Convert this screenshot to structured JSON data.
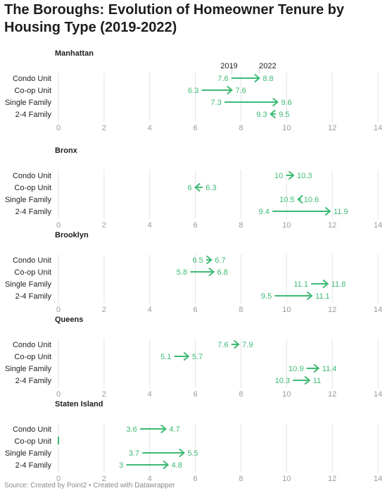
{
  "title": "The Boroughs: Evolution of Homeowner Tenure by Housing Type (2019-2022)",
  "source": "Source: Created by Point2 • Created with Datawrapper",
  "colors": {
    "accent": "#3dba73",
    "grid": "#e4e4e4",
    "tick": "#9a9a9a"
  },
  "chart_data": [
    {
      "type": "arrow",
      "title": "Manhattan",
      "legend": {
        "start_label": "2019",
        "end_label": "2022"
      },
      "xlim": [
        0,
        14
      ],
      "ticks": [
        0,
        2,
        4,
        6,
        8,
        10,
        12,
        14
      ],
      "categories": [
        "Condo Unit",
        "Co-op Unit",
        "Single Family",
        "2-4 Family"
      ],
      "start": [
        7.6,
        6.3,
        7.3,
        9.5
      ],
      "end": [
        8.8,
        7.6,
        9.6,
        9.3
      ]
    },
    {
      "type": "arrow",
      "title": "Bronx",
      "xlim": [
        0,
        14
      ],
      "ticks": [
        0,
        2,
        4,
        6,
        8,
        10,
        12,
        14
      ],
      "categories": [
        "Condo Unit",
        "Co-op Unit",
        "Single Family",
        "2-4 Family"
      ],
      "start": [
        10,
        6.3,
        10.6,
        9.4
      ],
      "end": [
        10.3,
        6,
        10.5,
        11.9
      ]
    },
    {
      "type": "arrow",
      "title": "Brooklyn",
      "xlim": [
        0,
        14
      ],
      "ticks": [
        0,
        2,
        4,
        6,
        8,
        10,
        12,
        14
      ],
      "categories": [
        "Condo Unit",
        "Co-op Unit",
        "Single Family",
        "2-4 Family"
      ],
      "start": [
        6.5,
        5.8,
        11.1,
        9.5
      ],
      "end": [
        6.7,
        6.8,
        11.8,
        11.1
      ]
    },
    {
      "type": "arrow",
      "title": "Queens",
      "xlim": [
        0,
        14
      ],
      "ticks": [
        0,
        2,
        4,
        6,
        8,
        10,
        12,
        14
      ],
      "categories": [
        "Condo Unit",
        "Co-op Unit",
        "Single Family",
        "2-4 Family"
      ],
      "start": [
        7.6,
        5.1,
        10.9,
        10.3
      ],
      "end": [
        7.9,
        5.7,
        11.4,
        11
      ]
    },
    {
      "type": "arrow",
      "title": "Staten Island",
      "xlim": [
        0,
        14
      ],
      "ticks": [
        0,
        2,
        4,
        6,
        8,
        10,
        12,
        14
      ],
      "categories": [
        "Condo Unit",
        "Co-op Unit",
        "Single Family",
        "2-4 Family"
      ],
      "start": [
        3.6,
        0,
        3.7,
        3
      ],
      "end": [
        4.7,
        0,
        5.5,
        4.8
      ]
    }
  ]
}
